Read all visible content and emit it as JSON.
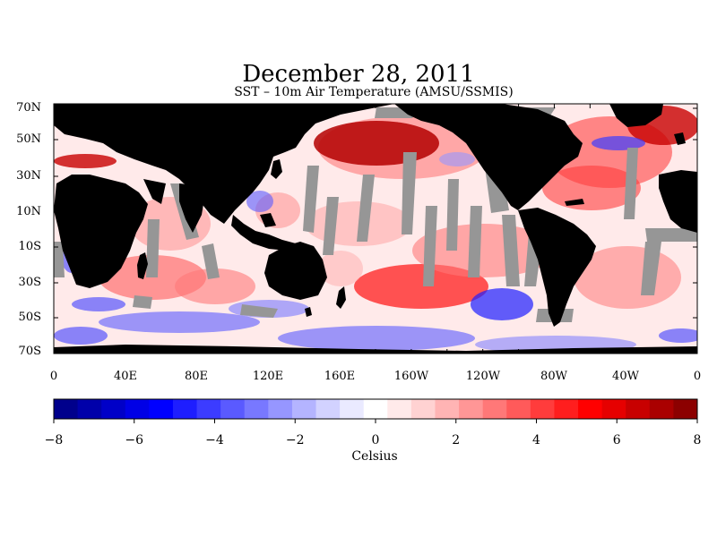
{
  "title": "December 28, 2011",
  "subtitle": "SST – 10m Air Temperature (AMSU/SSMIS)",
  "map": {
    "lat_labels": [
      "70N",
      "50N",
      "30N",
      "10N",
      "10S",
      "30S",
      "50S",
      "70S"
    ],
    "lon_labels": [
      "0",
      "40E",
      "80E",
      "120E",
      "160E",
      "160W",
      "120W",
      "80W",
      "40W",
      "0"
    ],
    "land_color": "#000000",
    "missing_color": "#969696"
  },
  "colorbar": {
    "unit": "Celsius",
    "min": -8,
    "max": 8,
    "tick_labels": [
      "−8",
      "−6",
      "−4",
      "−2",
      "0",
      "2",
      "4",
      "6",
      "8"
    ],
    "colors": [
      "#00008c",
      "#0000aa",
      "#0000c8",
      "#0000e6",
      "#0000ff",
      "#1e1eff",
      "#3c3cff",
      "#5a5aff",
      "#7878ff",
      "#9696ff",
      "#b4b4ff",
      "#d2d2ff",
      "#eaeaff",
      "#ffffff",
      "#ffeaea",
      "#ffd2d2",
      "#ffb4b4",
      "#ff9696",
      "#ff7878",
      "#ff5a5a",
      "#ff3c3c",
      "#ff1e1e",
      "#ff0000",
      "#e60000",
      "#c80000",
      "#aa0000",
      "#8c0000"
    ]
  }
}
